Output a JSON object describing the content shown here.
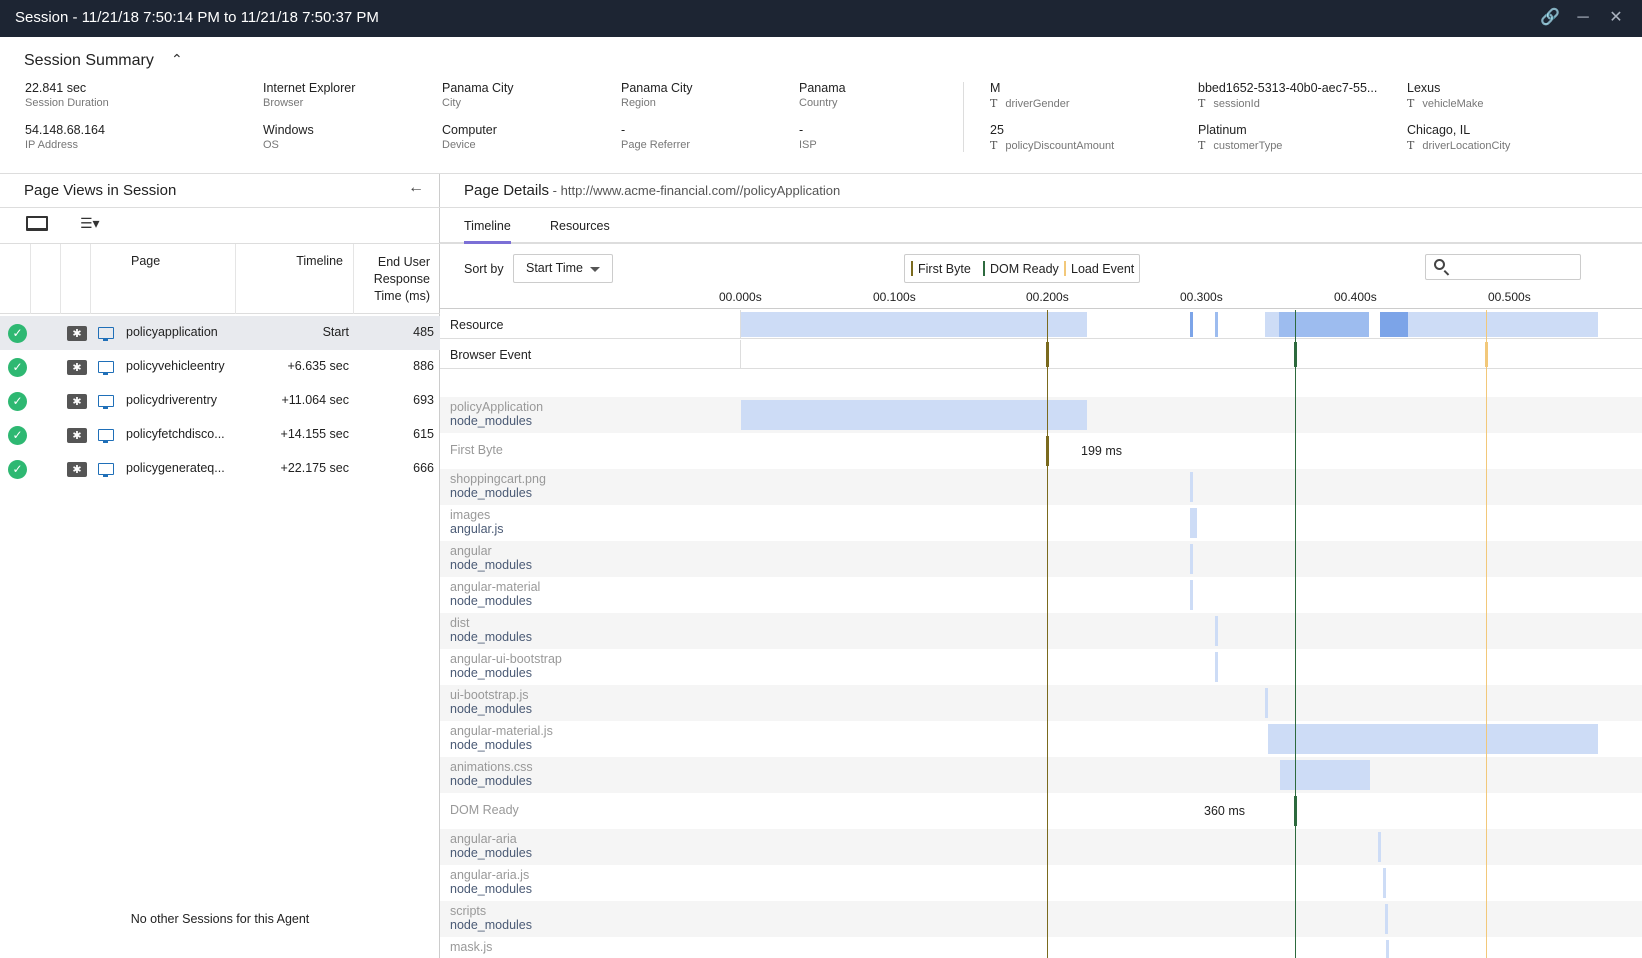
{
  "window": {
    "title": "Session - 11/21/18 7:50:14 PM to 11/21/18 7:50:37 PM",
    "icons": [
      "link-icon",
      "minimize-icon",
      "close-icon"
    ]
  },
  "summary": {
    "title": "Session Summary",
    "fields": {
      "duration": {
        "value": "22.841 sec",
        "label": "Session Duration"
      },
      "browser": {
        "value": "Internet Explorer",
        "label": "Browser"
      },
      "city": {
        "value": "Panama City",
        "label": "City"
      },
      "region": {
        "value": "Panama City",
        "label": "Region"
      },
      "country": {
        "value": "Panama",
        "label": "Country"
      },
      "ip": {
        "value": "54.148.68.164",
        "label": "IP Address"
      },
      "os": {
        "value": "Windows",
        "label": "OS"
      },
      "device": {
        "value": "Computer",
        "label": "Device"
      },
      "referrer": {
        "value": "-",
        "label": "Page Referrer"
      },
      "isp": {
        "value": "-",
        "label": "ISP"
      }
    },
    "custom": {
      "driverGender": {
        "value": "M",
        "label": "driverGender",
        "type": "T"
      },
      "sessionId": {
        "value": "bbed1652-5313-40b0-aec7-55...",
        "label": "sessionId",
        "type": "T"
      },
      "vehicleMake": {
        "value": "Lexus",
        "label": "vehicleMake",
        "type": "T"
      },
      "policyDiscountAmount": {
        "value": "25",
        "label": "policyDiscountAmount",
        "type": "T"
      },
      "customerType": {
        "value": "Platinum",
        "label": "customerType",
        "type": "T"
      },
      "driverLocationCity": {
        "value": "Chicago, IL",
        "label": "driverLocationCity",
        "type": "T"
      }
    }
  },
  "pageViews": {
    "title": "Page Views in Session",
    "columns": {
      "page": "Page",
      "timeline": "Timeline",
      "response": "End User Response Time (ms)"
    },
    "rows": [
      {
        "page": "policyapplication",
        "timeline": "Start",
        "response": "485"
      },
      {
        "page": "policyvehicleentry",
        "timeline": "+6.635 sec",
        "response": "886"
      },
      {
        "page": "policydriverentry",
        "timeline": "+11.064 sec",
        "response": "693"
      },
      {
        "page": "policyfetchdisco...",
        "timeline": "+14.155 sec",
        "response": "615"
      },
      {
        "page": "policygenerateq...",
        "timeline": "+22.175 sec",
        "response": "666"
      }
    ],
    "footer": "No other Sessions for this Agent"
  },
  "pageDetails": {
    "title": "Page Details",
    "url": " - http://www.acme-financial.com//policyApplication",
    "tabs": [
      "Timeline",
      "Resources"
    ],
    "sortLabel": "Sort by",
    "sortValue": "Start Time",
    "legend": {
      "firstByte": "First Byte",
      "domReady": "DOM Ready",
      "loadEvent": "Load Event"
    },
    "colors": {
      "firstByte": "#7a6a1e",
      "domReady": "#2d6a3e",
      "loadEvent": "#f2c87a",
      "bar": "#cddcf6"
    },
    "ticks": [
      "00.000s",
      "00.100s",
      "00.200s",
      "00.300s",
      "00.400s",
      "00.500s"
    ],
    "summaryRows": [
      "Resource",
      "Browser Event"
    ],
    "resources": [
      {
        "name": "policyApplication",
        "dir": "node_modules"
      },
      {
        "name": "First Byte",
        "dir": "",
        "ms": "199 ms"
      },
      {
        "name": "shoppingcart.png",
        "dir": "node_modules"
      },
      {
        "name": "images",
        "dir": "angular.js"
      },
      {
        "name": "angular",
        "dir": "node_modules"
      },
      {
        "name": "angular-material",
        "dir": "node_modules"
      },
      {
        "name": "dist",
        "dir": "node_modules"
      },
      {
        "name": "angular-ui-bootstrap",
        "dir": "node_modules"
      },
      {
        "name": "ui-bootstrap.js",
        "dir": "node_modules"
      },
      {
        "name": "angular-material.js",
        "dir": "node_modules"
      },
      {
        "name": "animations.css",
        "dir": "node_modules"
      },
      {
        "name": "DOM Ready",
        "dir": "",
        "ms": "360 ms"
      },
      {
        "name": "angular-aria",
        "dir": "node_modules"
      },
      {
        "name": "angular-aria.js",
        "dir": "node_modules"
      },
      {
        "name": "scripts",
        "dir": "node_modules"
      },
      {
        "name": "mask.js",
        "dir": ""
      }
    ]
  }
}
